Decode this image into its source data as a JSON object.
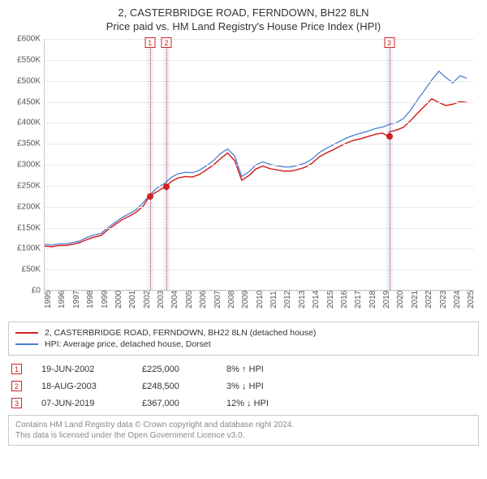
{
  "title": {
    "line1": "2, CASTERBRIDGE ROAD, FERNDOWN, BH22 8LN",
    "line2": "Price paid vs. HM Land Registry's House Price Index (HPI)"
  },
  "chart": {
    "type": "line",
    "background_color": "#ffffff",
    "grid_color": "#e9e9e9",
    "axis_color": "#c9c9c9",
    "tick_font_size": 10,
    "x_min": 1995,
    "x_max": 2025.5,
    "x_ticks": [
      1995,
      1996,
      1997,
      1998,
      1999,
      2000,
      2001,
      2002,
      2003,
      2004,
      2005,
      2006,
      2007,
      2008,
      2009,
      2010,
      2011,
      2012,
      2013,
      2014,
      2015,
      2016,
      2017,
      2018,
      2019,
      2020,
      2021,
      2022,
      2023,
      2024,
      2025
    ],
    "y_min": 0,
    "y_max": 600,
    "y_ticks": [
      0,
      50,
      100,
      150,
      200,
      250,
      300,
      350,
      400,
      450,
      500,
      550,
      600
    ],
    "y_prefix": "£",
    "y_suffix": "K",
    "series": [
      {
        "id": "property",
        "label": "2, CASTERBRIDGE ROAD, FERNDOWN, BH22 8LN (detached house)",
        "color": "#d22222",
        "line_width": 1.5,
        "data": [
          [
            1995.0,
            105
          ],
          [
            1995.5,
            103
          ],
          [
            1996.0,
            106
          ],
          [
            1996.5,
            106
          ],
          [
            1997.0,
            109
          ],
          [
            1997.5,
            113
          ],
          [
            1998.0,
            120
          ],
          [
            1998.5,
            126
          ],
          [
            1999.0,
            130
          ],
          [
            1999.5,
            144
          ],
          [
            2000.0,
            156
          ],
          [
            2000.5,
            168
          ],
          [
            2001.0,
            176
          ],
          [
            2001.5,
            186
          ],
          [
            2002.0,
            200
          ],
          [
            2002.46,
            225
          ],
          [
            2003.0,
            235
          ],
          [
            2003.63,
            248.5
          ],
          [
            2004.0,
            259
          ],
          [
            2004.5,
            268
          ],
          [
            2005.0,
            271
          ],
          [
            2005.5,
            270
          ],
          [
            2006.0,
            276
          ],
          [
            2006.5,
            287
          ],
          [
            2007.0,
            299
          ],
          [
            2007.5,
            314
          ],
          [
            2008.0,
            327
          ],
          [
            2008.5,
            309
          ],
          [
            2009.0,
            262
          ],
          [
            2009.5,
            273
          ],
          [
            2010.0,
            289
          ],
          [
            2010.5,
            296
          ],
          [
            2011.0,
            290
          ],
          [
            2011.5,
            287
          ],
          [
            2012.0,
            284
          ],
          [
            2012.5,
            284
          ],
          [
            2013.0,
            288
          ],
          [
            2013.5,
            293
          ],
          [
            2014.0,
            303
          ],
          [
            2014.5,
            318
          ],
          [
            2015.0,
            327
          ],
          [
            2015.5,
            335
          ],
          [
            2016.0,
            344
          ],
          [
            2016.5,
            352
          ],
          [
            2017.0,
            358
          ],
          [
            2017.5,
            362
          ],
          [
            2018.0,
            367
          ],
          [
            2018.5,
            372
          ],
          [
            2019.0,
            375
          ],
          [
            2019.43,
            367
          ],
          [
            2019.5,
            378
          ],
          [
            2020.0,
            382
          ],
          [
            2020.5,
            389
          ],
          [
            2021.0,
            405
          ],
          [
            2021.5,
            423
          ],
          [
            2022.0,
            440
          ],
          [
            2022.5,
            457
          ],
          [
            2023.0,
            448
          ],
          [
            2023.5,
            441
          ],
          [
            2024.0,
            444
          ],
          [
            2024.5,
            450
          ],
          [
            2025.0,
            448
          ]
        ]
      },
      {
        "id": "hpi",
        "label": "HPI: Average price, detached house, Dorset",
        "color": "#4a7ed1",
        "line_width": 1.3,
        "data": [
          [
            1995.0,
            109
          ],
          [
            1995.5,
            107
          ],
          [
            1996.0,
            110
          ],
          [
            1996.5,
            110
          ],
          [
            1997.0,
            113
          ],
          [
            1997.5,
            117
          ],
          [
            1998.0,
            125
          ],
          [
            1998.5,
            131
          ],
          [
            1999.0,
            135
          ],
          [
            1999.5,
            149
          ],
          [
            2000.0,
            161
          ],
          [
            2000.5,
            173
          ],
          [
            2001.0,
            182
          ],
          [
            2001.5,
            192
          ],
          [
            2002.0,
            208
          ],
          [
            2002.5,
            228
          ],
          [
            2003.0,
            244
          ],
          [
            2003.5,
            254
          ],
          [
            2004.0,
            269
          ],
          [
            2004.5,
            278
          ],
          [
            2005.0,
            281
          ],
          [
            2005.5,
            280
          ],
          [
            2006.0,
            286
          ],
          [
            2006.5,
            297
          ],
          [
            2007.0,
            309
          ],
          [
            2007.5,
            326
          ],
          [
            2008.0,
            337
          ],
          [
            2008.5,
            320
          ],
          [
            2009.0,
            271
          ],
          [
            2009.5,
            282
          ],
          [
            2010.0,
            299
          ],
          [
            2010.5,
            306
          ],
          [
            2011.0,
            300
          ],
          [
            2011.5,
            297
          ],
          [
            2012.0,
            294
          ],
          [
            2012.5,
            294
          ],
          [
            2013.0,
            298
          ],
          [
            2013.5,
            303
          ],
          [
            2014.0,
            313
          ],
          [
            2014.5,
            328
          ],
          [
            2015.0,
            338
          ],
          [
            2015.5,
            347
          ],
          [
            2016.0,
            356
          ],
          [
            2016.5,
            364
          ],
          [
            2017.0,
            370
          ],
          [
            2017.5,
            375
          ],
          [
            2018.0,
            380
          ],
          [
            2018.5,
            386
          ],
          [
            2019.0,
            389
          ],
          [
            2019.5,
            396
          ],
          [
            2020.0,
            400
          ],
          [
            2020.5,
            410
          ],
          [
            2021.0,
            430
          ],
          [
            2021.5,
            455
          ],
          [
            2022.0,
            478
          ],
          [
            2022.5,
            502
          ],
          [
            2023.0,
            523
          ],
          [
            2023.5,
            508
          ],
          [
            2024.0,
            495
          ],
          [
            2024.5,
            512
          ],
          [
            2025.0,
            506
          ]
        ]
      }
    ],
    "markers": [
      {
        "n": "1",
        "x": 2002.46,
        "y": 225,
        "color": "#d22222",
        "band_color": "rgba(100,150,220,0.12)"
      },
      {
        "n": "2",
        "x": 2003.63,
        "y": 248.5,
        "color": "#d22222",
        "band_color": "rgba(100,150,220,0.12)"
      },
      {
        "n": "3",
        "x": 2019.43,
        "y": 367,
        "color": "#d22222",
        "band_color": "rgba(100,150,220,0.12)"
      }
    ]
  },
  "events": [
    {
      "n": "1",
      "date": "19-JUN-2002",
      "price": "£225,000",
      "diff": "8% ↑ HPI",
      "color": "#d22222"
    },
    {
      "n": "2",
      "date": "18-AUG-2003",
      "price": "£248,500",
      "diff": "3% ↓ HPI",
      "color": "#d22222"
    },
    {
      "n": "3",
      "date": "07-JUN-2019",
      "price": "£367,000",
      "diff": "12% ↓ HPI",
      "color": "#d22222"
    }
  ],
  "attribution": {
    "line1": "Contains HM Land Registry data © Crown copyright and database right 2024.",
    "line2": "This data is licensed under the Open Government Licence v3.0."
  }
}
